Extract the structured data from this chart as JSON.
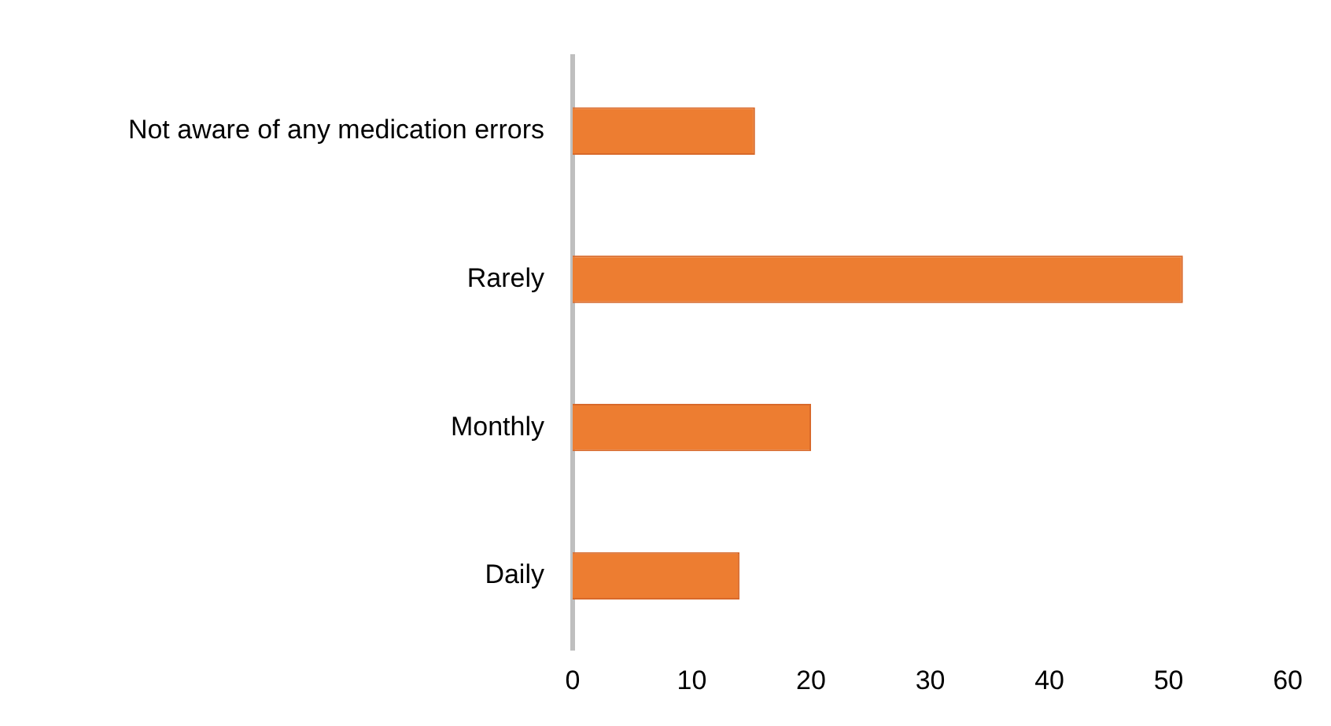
{
  "chart_data": {
    "type": "bar",
    "orientation": "horizontal",
    "categories": [
      "Not aware of any medication errors",
      "Rarely",
      "Monthly",
      "Daily"
    ],
    "values": [
      15.3,
      51.2,
      20,
      14
    ],
    "color": "#ed7d31",
    "xlim": [
      0,
      60
    ],
    "xticks": [
      0,
      10,
      20,
      30,
      40,
      50,
      60
    ],
    "grid": false,
    "legend": false
  }
}
